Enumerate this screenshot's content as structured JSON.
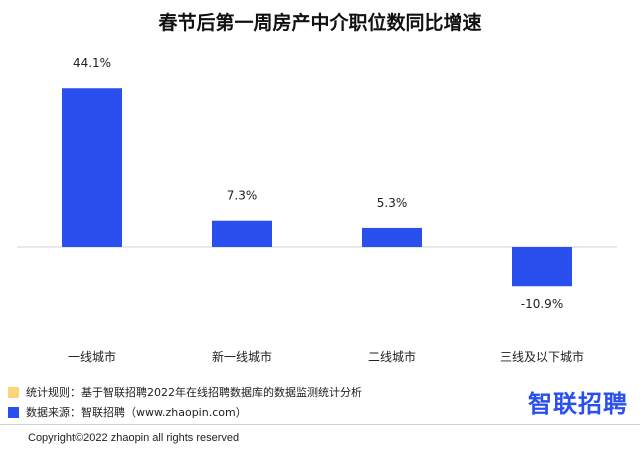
{
  "title": "春节后第一周房产中介职位数同比增速",
  "chart_data": {
    "type": "bar",
    "categories": [
      "一线城市",
      "新一线城市",
      "二线城市",
      "三线及以下城市"
    ],
    "values": [
      44.1,
      7.3,
      5.3,
      -10.9
    ],
    "value_labels": [
      "44.1%",
      "7.3%",
      "5.3%",
      "-10.9%"
    ],
    "ylim": [
      -15,
      50
    ],
    "grid": false,
    "bar_color": "#2a4fef"
  },
  "legend": [
    {
      "text": "统计规则：基于智联招聘2022年在线招聘数据库的数据监测统计分析",
      "color": "#fcd57a"
    },
    {
      "text": "数据来源：智联招聘（www.zhaopin.com）",
      "color": "#2a4fef"
    }
  ],
  "brand": {
    "text": "智联招聘",
    "color": "#2a4fef"
  },
  "copyright": "Copyright©2022 zhaopin all rights reserved"
}
